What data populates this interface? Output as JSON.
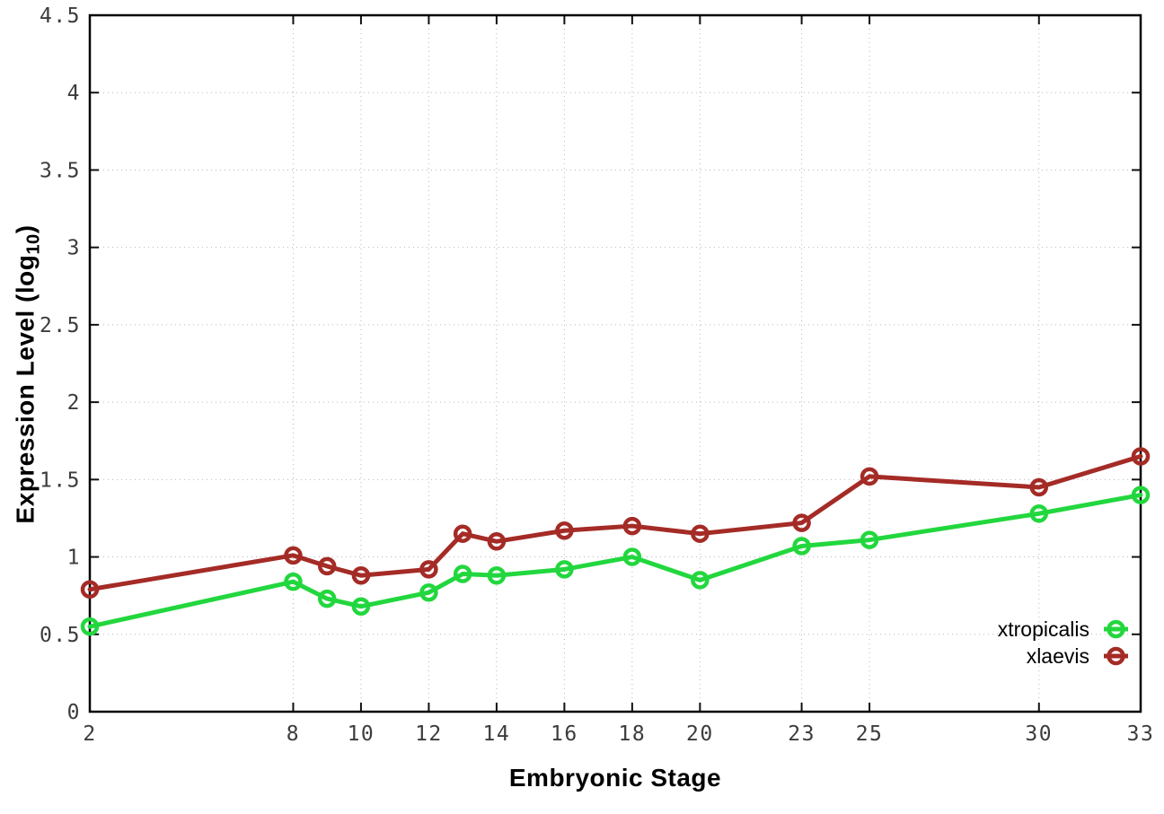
{
  "axes": {
    "xlabel": "Embryonic Stage",
    "ylabel_prefix": "Expression Level (log",
    "ylabel_sub": "10",
    "ylabel_suffix": ")"
  },
  "legend": {
    "entries": [
      "xtropicalis",
      "xlaevis"
    ]
  },
  "style": {
    "background": "#ffffff",
    "border_color": "#000000",
    "grid_color": "#b8b8b8",
    "tick_color": "#111111",
    "tick_label_color": "#3c3c3c",
    "legend_text_color": "#000000",
    "series_green": "#22d73e",
    "series_red": "#a42b26"
  },
  "chart_data": {
    "type": "line",
    "title": "",
    "xlabel": "Embryonic Stage",
    "ylabel": "Expression Level (log10)",
    "x": [
      2,
      8,
      9,
      10,
      12,
      13,
      14,
      16,
      18,
      20,
      23,
      25,
      30,
      33
    ],
    "series": [
      {
        "name": "xtropicalis",
        "color": "#22d73e",
        "marker": "open-circle",
        "values": [
          0.55,
          0.84,
          0.73,
          0.68,
          0.77,
          0.89,
          0.88,
          0.92,
          1.0,
          0.85,
          1.07,
          1.11,
          1.28,
          1.4
        ]
      },
      {
        "name": "xlaevis",
        "color": "#a42b26",
        "marker": "open-circle",
        "values": [
          0.79,
          1.01,
          0.94,
          0.88,
          0.92,
          1.15,
          1.1,
          1.17,
          1.2,
          1.15,
          1.22,
          1.52,
          1.45,
          1.65
        ]
      }
    ],
    "xlim": [
      2,
      33
    ],
    "ylim": [
      0,
      4.5
    ],
    "xticks": [
      2,
      8,
      10,
      12,
      14,
      16,
      18,
      20,
      23,
      25,
      30,
      33
    ],
    "yticks": [
      0,
      0.5,
      1,
      1.5,
      2,
      2.5,
      3,
      3.5,
      4,
      4.5
    ],
    "grid": true,
    "grid_style": "dotted",
    "legend_position": "inside-bottom-right",
    "ticks_mirrored": true
  }
}
